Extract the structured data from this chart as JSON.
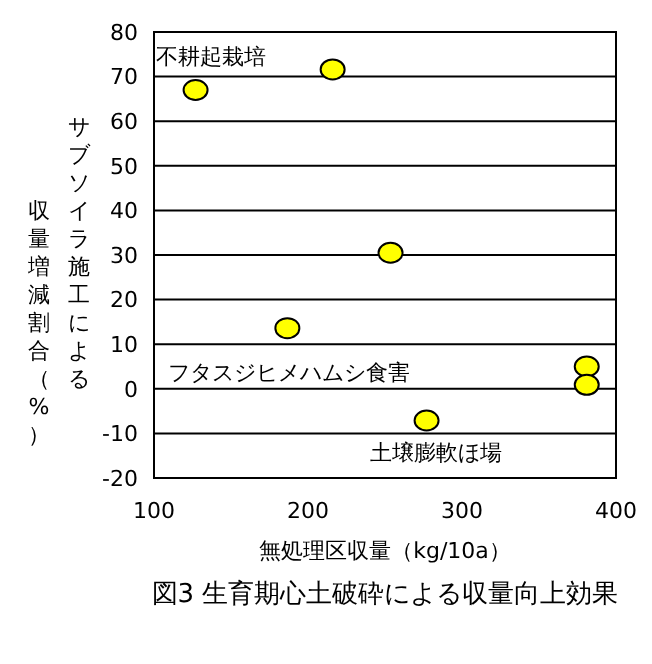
{
  "chart_data": {
    "type": "scatter",
    "title": "図3 生育期心土破砕による収量向上効果",
    "xlabel": "無処理区収量（kg/10a）",
    "ylabel": "サブソイラ施工による収量増減割合（%）",
    "x": [
      127,
      216,
      253.6,
      186.6,
      381,
      381,
      277
    ],
    "values": [
      67,
      71.6,
      30.5,
      13.6,
      5,
      0.9,
      -7.1
    ],
    "color": "#ffff00",
    "marker": "circle",
    "xlim": [
      100,
      400
    ],
    "xticks": [
      100,
      200,
      300,
      400
    ],
    "ylim": [
      -20,
      80
    ],
    "yticks": [
      -20,
      -10,
      0,
      10,
      20,
      30,
      40,
      50,
      60,
      70,
      80
    ],
    "grid": "y",
    "annotations": [
      "不耕起栽培",
      "フタスジヒメハムシ食害",
      "土壌膨軟ほ場"
    ]
  }
}
